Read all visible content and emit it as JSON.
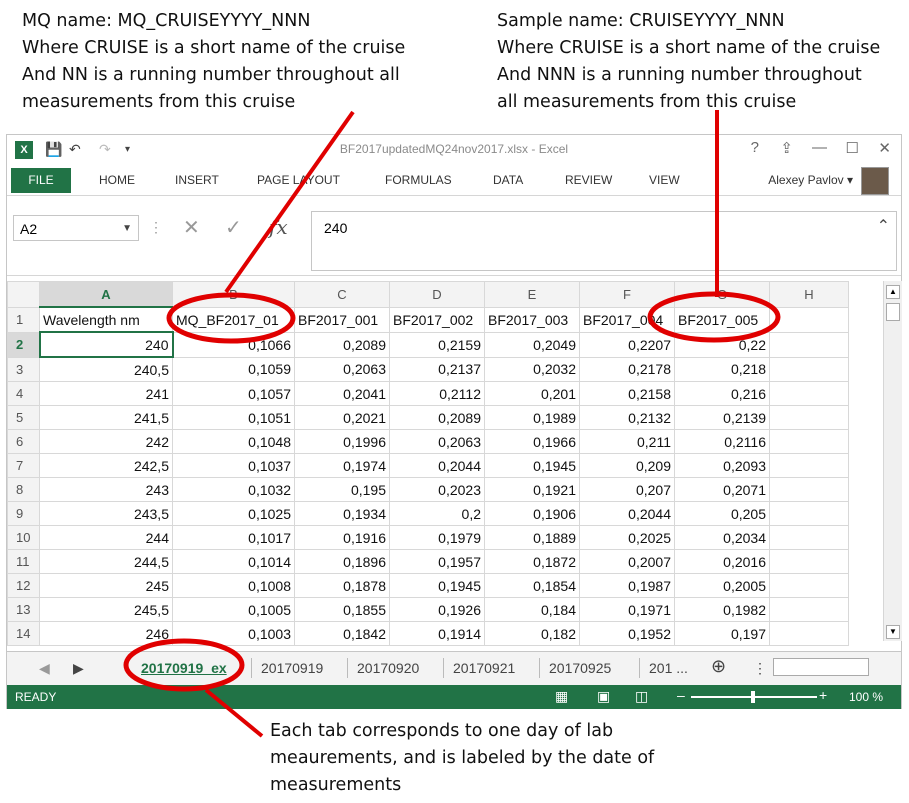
{
  "annotations": {
    "left": [
      "MQ name: MQ_CRUISEYYYY_NNN",
      "Where CRUISE is a short name of the cruise",
      "And NN is a running number throughout all",
      "measurements from this cruise"
    ],
    "right": [
      "Sample name: CRUISEYYYY_NNN",
      "Where CRUISE is a short name of the cruise",
      "And NNN is a running number throughout",
      "all measurements from this cruise"
    ],
    "bottom": [
      "Each tab corresponds to one day of lab",
      "meaurements, and is labeled by the date of",
      "measurements"
    ]
  },
  "window": {
    "title": "BF2017updatedMQ24nov2017.xlsx - Excel",
    "help": "?",
    "logo": "X"
  },
  "ribbon": {
    "file": "FILE",
    "tabs": [
      "HOME",
      "INSERT",
      "PAGE LAYOUT",
      "FORMULAS",
      "DATA",
      "REVIEW",
      "VIEW"
    ],
    "user": "Alexey Pavlov"
  },
  "formula_bar": {
    "name_box": "A2",
    "value": "240",
    "fx": "fx"
  },
  "grid": {
    "columns": [
      "A",
      "B",
      "C",
      "D",
      "E",
      "F",
      "G",
      "H"
    ],
    "row_numbers": [
      "1",
      "2",
      "3",
      "4",
      "5",
      "6",
      "7",
      "8",
      "9",
      "10",
      "11",
      "12",
      "13",
      "14"
    ],
    "rows": [
      [
        "Wavelength nm",
        "MQ_BF2017_01",
        "BF2017_001",
        "BF2017_002",
        "BF2017_003",
        "BF2017_004",
        "BF2017_005",
        ""
      ],
      [
        "240",
        "0,1066",
        "0,2089",
        "0,2159",
        "0,2049",
        "0,2207",
        "0,22",
        ""
      ],
      [
        "240,5",
        "0,1059",
        "0,2063",
        "0,2137",
        "0,2032",
        "0,2178",
        "0,218",
        ""
      ],
      [
        "241",
        "0,1057",
        "0,2041",
        "0,2112",
        "0,201",
        "0,2158",
        "0,216",
        ""
      ],
      [
        "241,5",
        "0,1051",
        "0,2021",
        "0,2089",
        "0,1989",
        "0,2132",
        "0,2139",
        ""
      ],
      [
        "242",
        "0,1048",
        "0,1996",
        "0,2063",
        "0,1966",
        "0,211",
        "0,2116",
        ""
      ],
      [
        "242,5",
        "0,1037",
        "0,1974",
        "0,2044",
        "0,1945",
        "0,209",
        "0,2093",
        ""
      ],
      [
        "243",
        "0,1032",
        "0,195",
        "0,2023",
        "0,1921",
        "0,207",
        "0,2071",
        ""
      ],
      [
        "243,5",
        "0,1025",
        "0,1934",
        "0,2",
        "0,1906",
        "0,2044",
        "0,205",
        ""
      ],
      [
        "244",
        "0,1017",
        "0,1916",
        "0,1979",
        "0,1889",
        "0,2025",
        "0,2034",
        ""
      ],
      [
        "244,5",
        "0,1014",
        "0,1896",
        "0,1957",
        "0,1872",
        "0,2007",
        "0,2016",
        ""
      ],
      [
        "245",
        "0,1008",
        "0,1878",
        "0,1945",
        "0,1854",
        "0,1987",
        "0,2005",
        ""
      ],
      [
        "245,5",
        "0,1005",
        "0,1855",
        "0,1926",
        "0,184",
        "0,1971",
        "0,1982",
        ""
      ],
      [
        "246",
        "0,1003",
        "0,1842",
        "0,1914",
        "0,182",
        "0,1952",
        "0,197",
        ""
      ]
    ]
  },
  "sheets": {
    "tabs": [
      "20170919_ex",
      "20170919",
      "20170920",
      "20170921",
      "20170925",
      "201 ..."
    ],
    "active_index": 0
  },
  "status": {
    "ready": "READY",
    "zoom": "100 %"
  },
  "colors": {
    "excel_green": "#217346",
    "highlight": "#e00000"
  }
}
